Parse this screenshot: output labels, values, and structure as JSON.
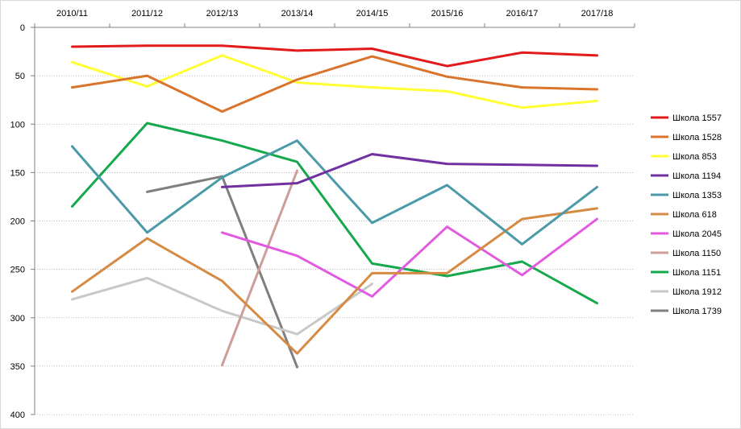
{
  "chart_data": {
    "type": "line",
    "title": "",
    "xlabel": "",
    "ylabel": "",
    "categories": [
      "2010/11",
      "2011/12",
      "2012/13",
      "2013/14",
      "2014/15",
      "2015/16",
      "2016/17",
      "2017/18"
    ],
    "y_ticks": [
      "0",
      "50",
      "100",
      "150",
      "200",
      "250",
      "300",
      "350",
      "400"
    ],
    "ylim": [
      0,
      400
    ],
    "y_reversed": true,
    "x_axis_position": "top",
    "grid": "horizontal dotted",
    "legend_position": "right",
    "series": [
      {
        "name": "Школа 1557",
        "color": "#e31a1c",
        "values": [
          20,
          19,
          19,
          24,
          22,
          40,
          26,
          29
        ]
      },
      {
        "name": "Школа 1528",
        "color": "#d9742c",
        "values": [
          62,
          50,
          87,
          54,
          30,
          51,
          62,
          64
        ]
      },
      {
        "name": "Школа 853",
        "color": "#ffff33",
        "values": [
          36,
          61,
          29,
          57,
          62,
          66,
          83,
          76
        ]
      },
      {
        "name": "Школа 1194",
        "color": "#7030a0",
        "values": [
          null,
          null,
          165,
          161,
          131,
          141,
          142,
          143
        ]
      },
      {
        "name": "Школа 1353",
        "color": "#4a9aa8",
        "values": [
          123,
          212,
          155,
          117,
          202,
          163,
          224,
          165
        ]
      },
      {
        "name": "Школа 618",
        "color": "#d58b44",
        "values": [
          273,
          218,
          262,
          337,
          254,
          254,
          198,
          187
        ]
      },
      {
        "name": "Школа 2045",
        "color": "#e25ae0",
        "values": [
          null,
          null,
          212,
          236,
          278,
          206,
          256,
          198
        ]
      },
      {
        "name": "Школа 1150",
        "color": "#cc9e96",
        "values": [
          null,
          null,
          349,
          148,
          null,
          null,
          null,
          null
        ]
      },
      {
        "name": "Школа 1151",
        "color": "#15a84c",
        "values": [
          185,
          99,
          117,
          139,
          244,
          257,
          242,
          285
        ]
      },
      {
        "name": "Школа 1912",
        "color": "#c8c8c8",
        "values": [
          281,
          259,
          293,
          317,
          265,
          null,
          null,
          null
        ]
      },
      {
        "name": "Школа 1739",
        "color": "#7f7f7f",
        "values": [
          null,
          170,
          154,
          351,
          null,
          null,
          null,
          null
        ]
      }
    ]
  }
}
